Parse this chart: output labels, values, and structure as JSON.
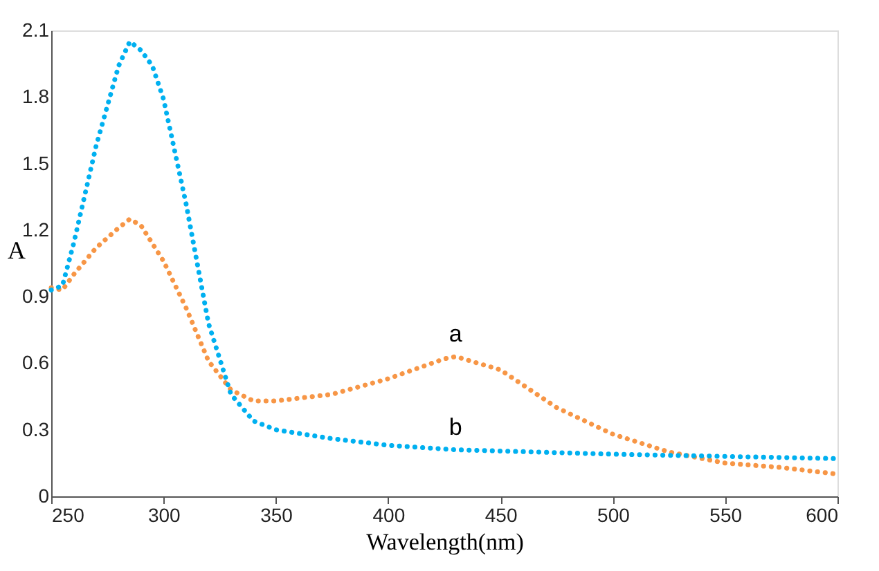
{
  "chart_data": {
    "type": "line",
    "xlabel": "Wavelength(nm)",
    "ylabel": "A",
    "xlim": [
      250,
      600
    ],
    "xticks": [
      250,
      300,
      350,
      400,
      450,
      500,
      550,
      600
    ],
    "ylim": [
      0,
      2.1
    ],
    "yticks": [
      0,
      0.3,
      0.6,
      0.9,
      1.2,
      1.5,
      1.8,
      2.1
    ],
    "grid": false,
    "legend": false,
    "line_style": "dotted",
    "marker": "none",
    "series": [
      {
        "color": "#f79646",
        "x": [
          250,
          255,
          260,
          270,
          280,
          285,
          290,
          300,
          310,
          320,
          330,
          340,
          350,
          375,
          400,
          425,
          430,
          450,
          475,
          500,
          525,
          550,
          575,
          600
        ],
        "values": [
          0.94,
          0.93,
          1.0,
          1.12,
          1.21,
          1.25,
          1.22,
          1.06,
          0.85,
          0.61,
          0.48,
          0.43,
          0.43,
          0.46,
          0.53,
          0.62,
          0.63,
          0.57,
          0.4,
          0.28,
          0.2,
          0.15,
          0.13,
          0.1
        ]
      },
      {
        "color": "#00b0f0",
        "x": [
          250,
          255,
          260,
          270,
          280,
          285,
          290,
          295,
          300,
          310,
          320,
          330,
          340,
          350,
          375,
          400,
          430,
          500,
          550,
          600
        ],
        "values": [
          0.93,
          0.95,
          1.14,
          1.58,
          1.94,
          2.05,
          2.01,
          1.94,
          1.79,
          1.32,
          0.78,
          0.46,
          0.34,
          0.3,
          0.26,
          0.23,
          0.21,
          0.19,
          0.18,
          0.17
        ]
      }
    ],
    "annotations": [
      {
        "text": "a",
        "x": 430,
        "y": 0.63
      },
      {
        "text": "b",
        "x": 430,
        "y": 0.21
      }
    ]
  }
}
